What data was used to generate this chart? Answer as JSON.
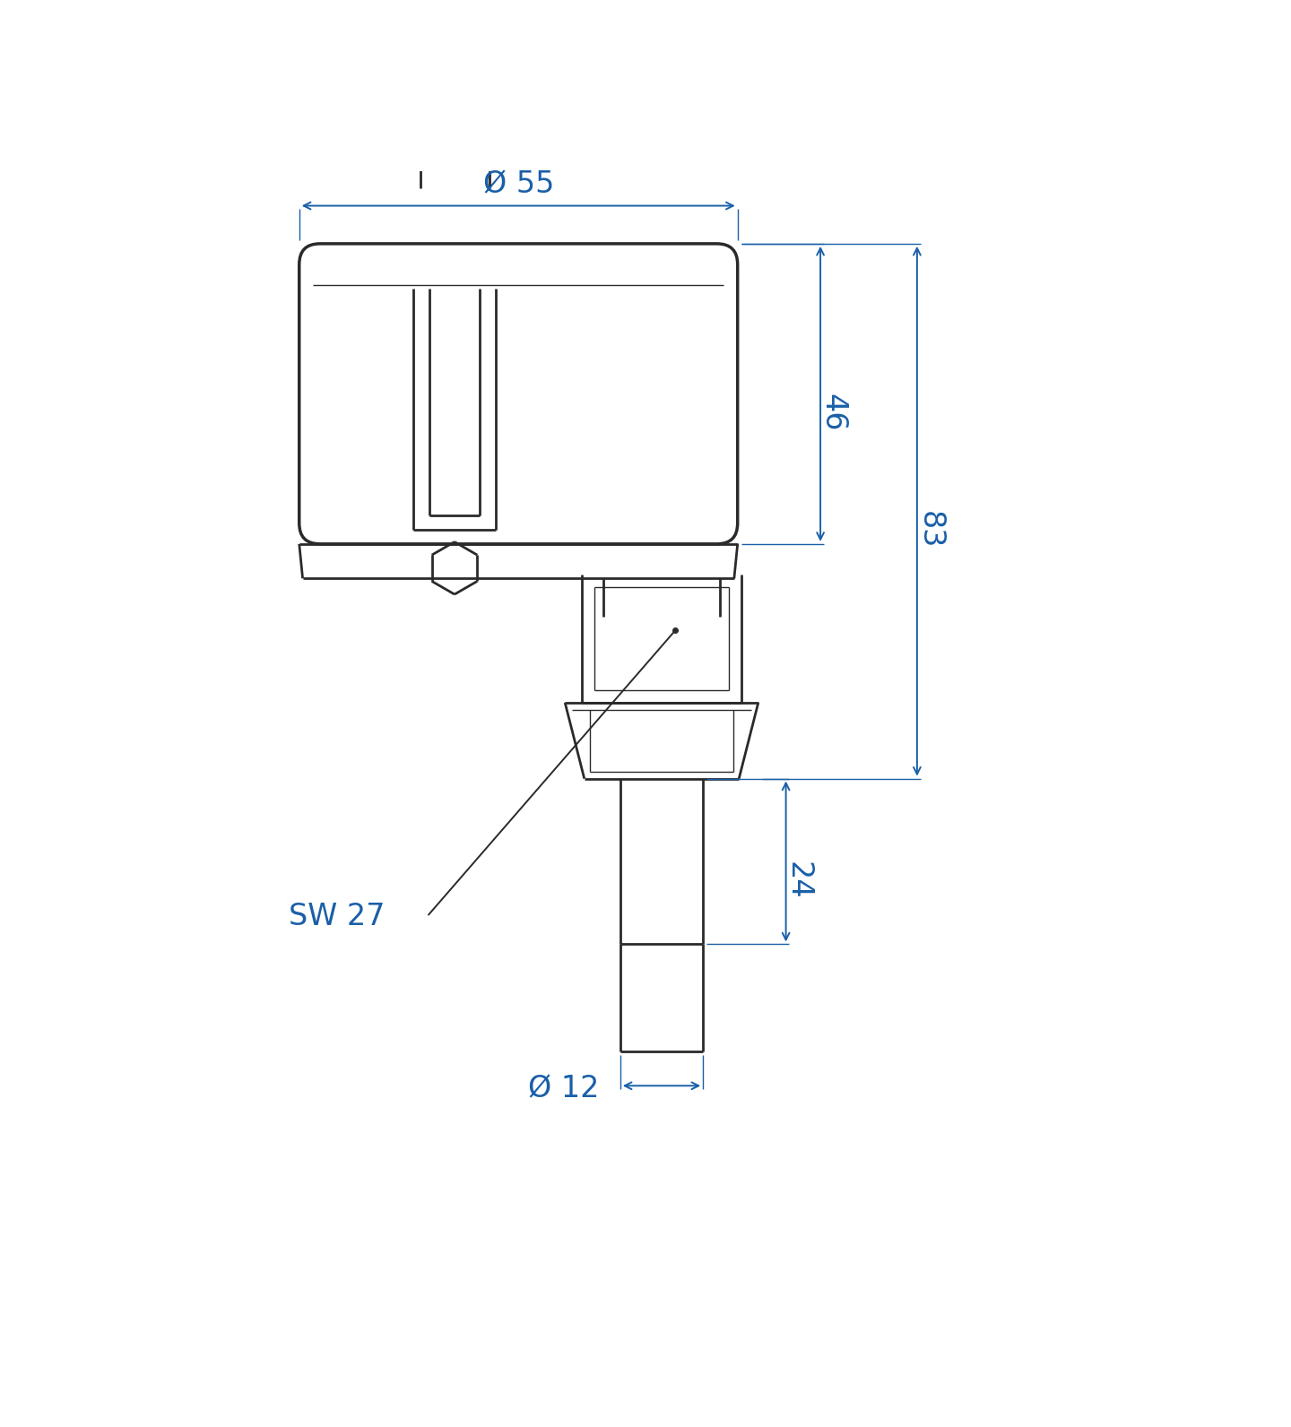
{
  "bg_color": "#ffffff",
  "line_color": "#2a2a2a",
  "dim_color": "#1a5fa8",
  "lw_main": 2.0,
  "lw_thin": 1.0,
  "lw_dim": 1.4,
  "dim_fontsize": 24,
  "dim_text_46": "46",
  "dim_text_83": "83",
  "dim_text_24": "24",
  "dim_text_55": "Ø 55",
  "dim_text_12": "Ø 12",
  "dim_text_sw27": "SW 27",
  "figsize": [
    14.4,
    15.92
  ]
}
